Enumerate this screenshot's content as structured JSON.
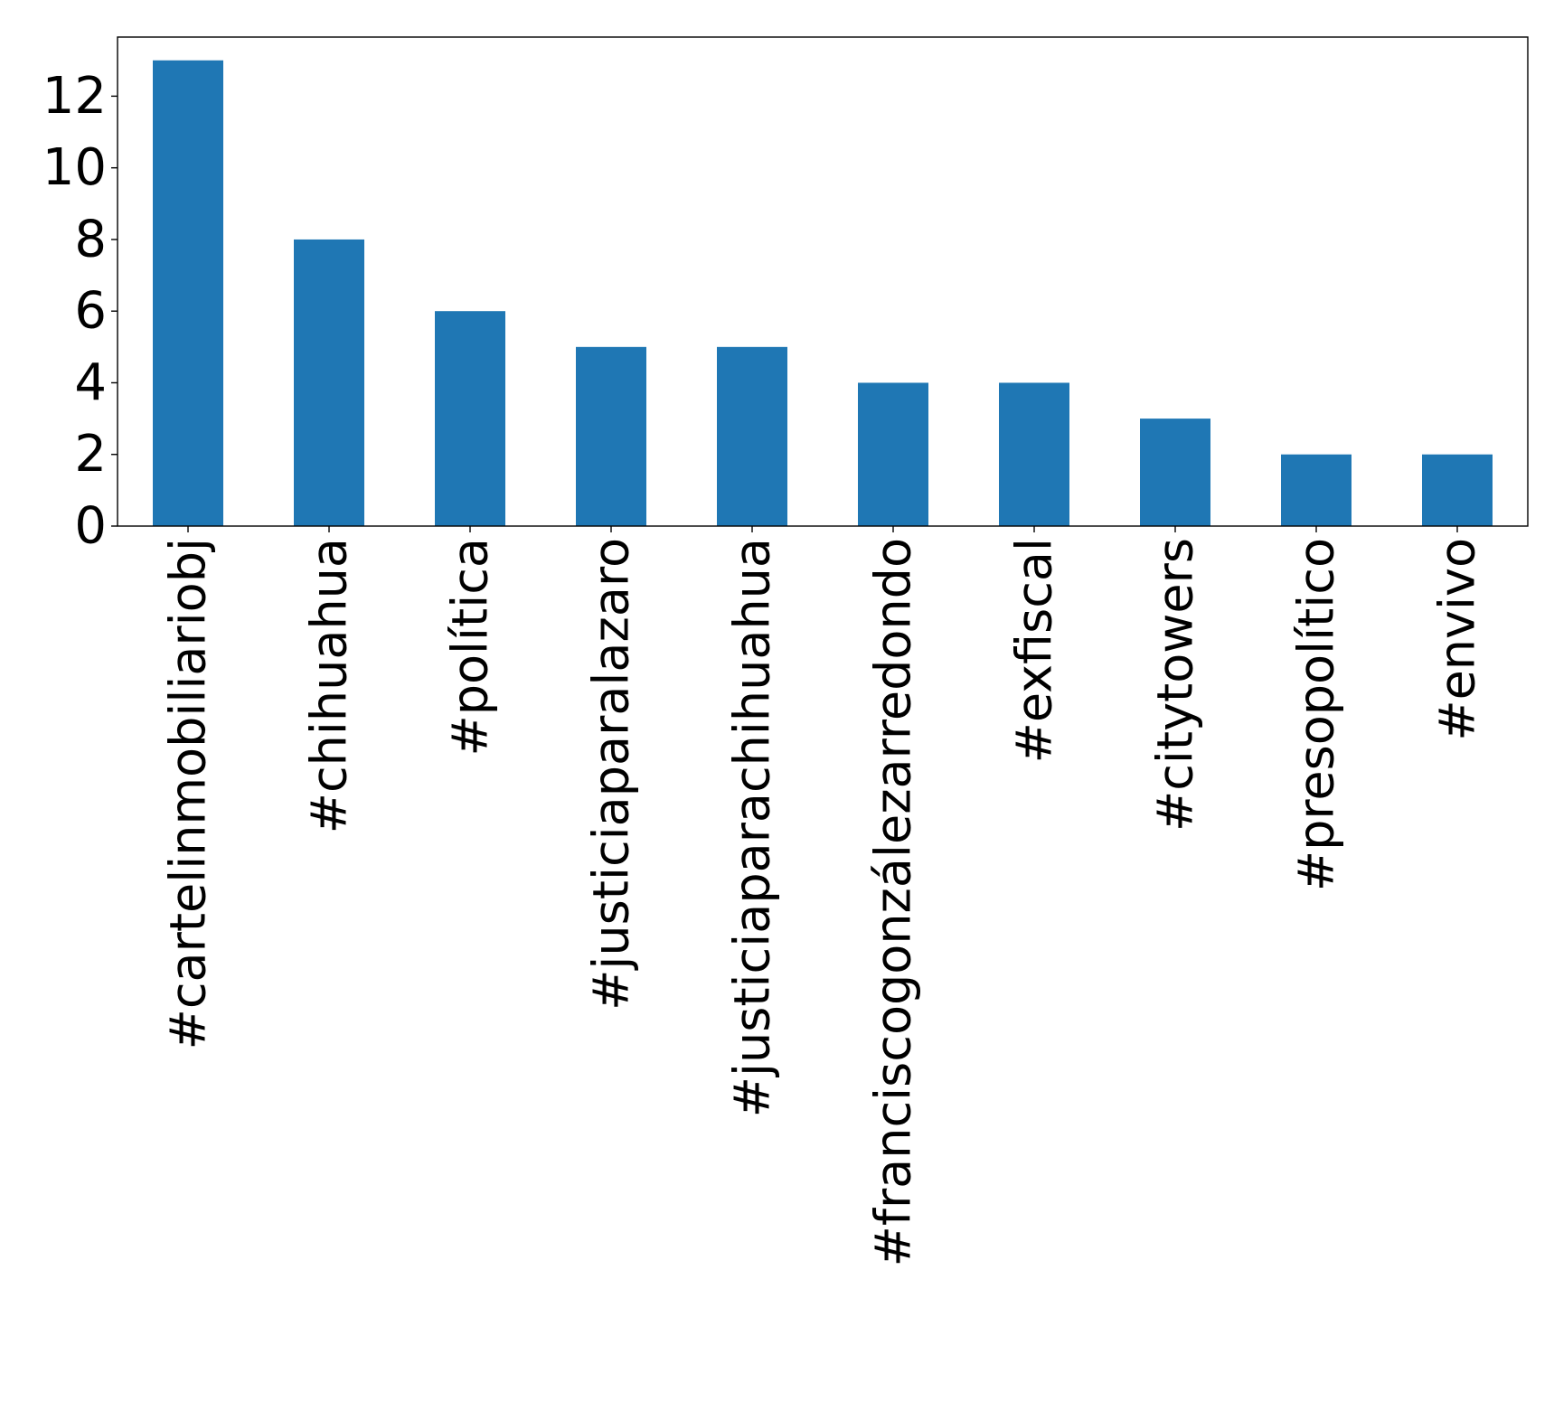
{
  "chart_data": {
    "type": "bar",
    "categories": [
      "#cartelinmobiliariobj",
      "#chihuahua",
      "#política",
      "#justiciaparalazaro",
      "#justiciaparachihuahua",
      "#franciscogonzálezarredondo",
      "#exfiscal",
      "#citytowers",
      "#presopolítico",
      "#envivo"
    ],
    "values": [
      13,
      8,
      6,
      5,
      5,
      4,
      4,
      3,
      2,
      2
    ],
    "ylim": [
      0,
      13.65
    ],
    "yticks": [
      "0",
      "2",
      "4",
      "6",
      "8",
      "10",
      "12"
    ],
    "grid": false,
    "legend": "none",
    "bar_color": "#1f77b4"
  }
}
